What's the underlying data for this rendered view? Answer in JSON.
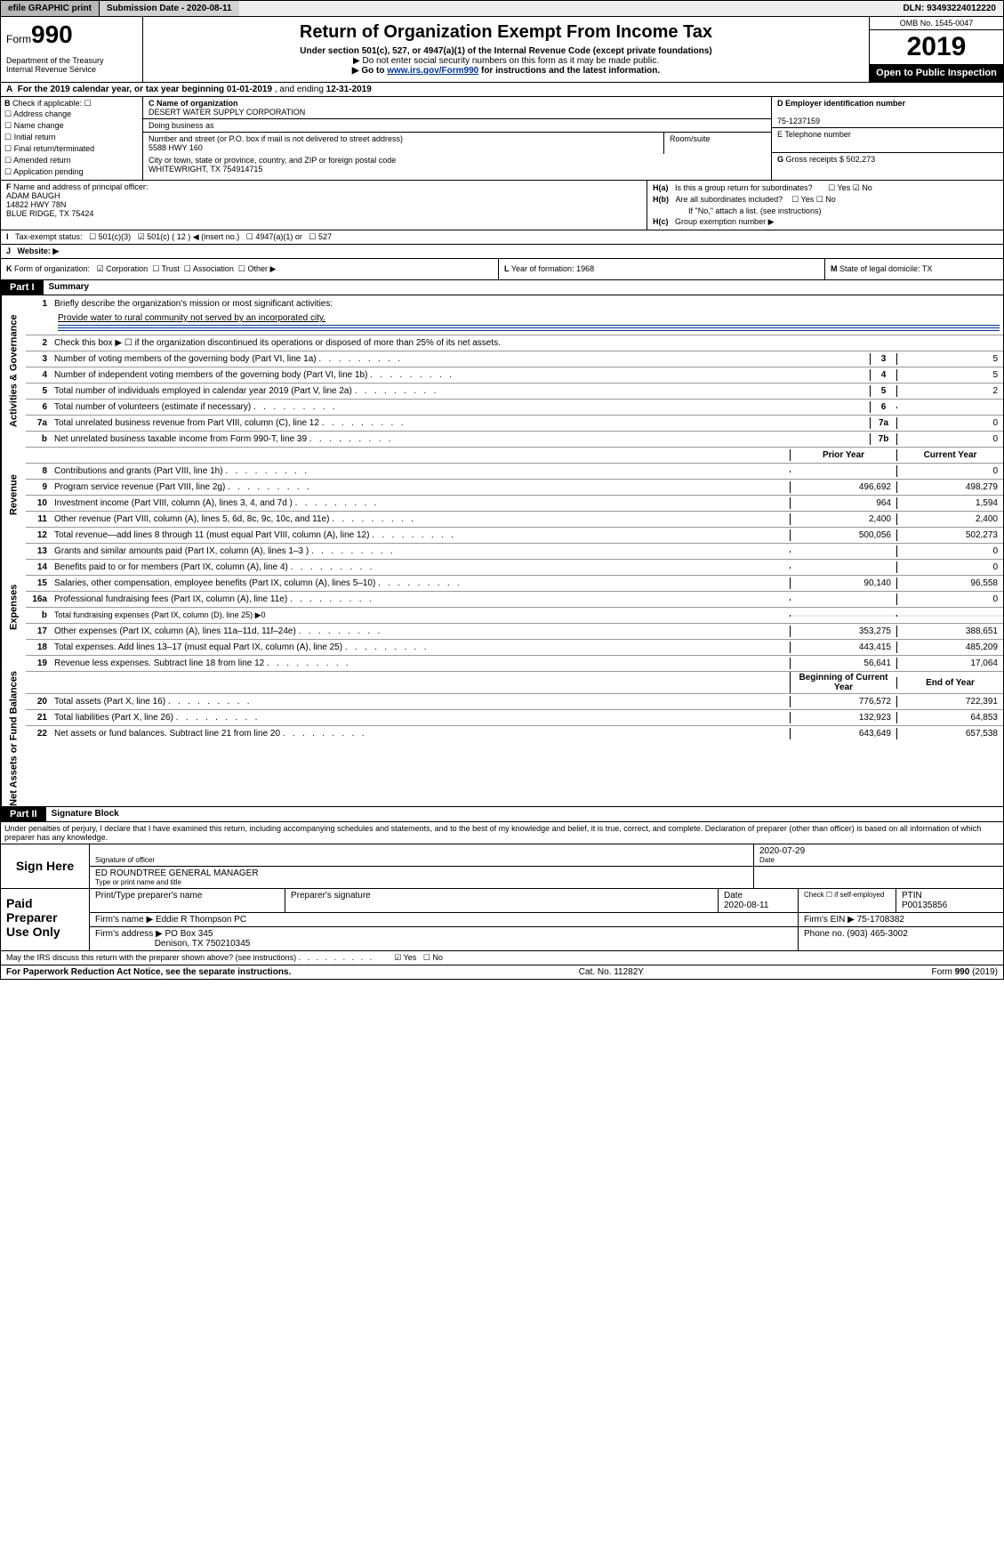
{
  "topbar": {
    "efile": "efile GRAPHIC print",
    "subm_label": "Submission Date - ",
    "subm_date": "2020-08-11",
    "dln_label": "DLN: ",
    "dln": "93493224012220"
  },
  "header": {
    "form_prefix": "Form",
    "form_num": "990",
    "dept": "Department of the Treasury\nInternal Revenue Service",
    "title": "Return of Organization Exempt From Income Tax",
    "sub1": "Under section 501(c), 527, or 4947(a)(1) of the Internal Revenue Code (except private foundations)",
    "sub2": "▶ Do not enter social security numbers on this form as it may be made public.",
    "sub3_pre": "▶ Go to ",
    "sub3_link": "www.irs.gov/Form990",
    "sub3_post": " for instructions and the latest information.",
    "omb": "OMB No. 1545-0047",
    "year": "2019",
    "open": "Open to Public Inspection"
  },
  "row_a": {
    "label_a": "A",
    "text": "For the 2019 calendar year, or tax year beginning ",
    "begin": "01-01-2019",
    "mid": " , and ending ",
    "end": "12-31-2019"
  },
  "section_b": {
    "label": "B",
    "check_label": "Check if applicable:",
    "checks": [
      "Address change",
      "Name change",
      "Initial return",
      "Final return/terminated",
      "Amended return",
      "Application pending"
    ],
    "c_name_label": "C Name of organization",
    "c_name": "DESERT WATER SUPPLY CORPORATION",
    "dba_label": "Doing business as",
    "addr_label": "Number and street (or P.O. box if mail is not delivered to street address)",
    "room_label": "Room/suite",
    "addr": "5588 HWY 160",
    "city_label": "City or town, state or province, country, and ZIP or foreign postal code",
    "city": "WHITEWRIGHT, TX  754914715",
    "d_label": "D Employer identification number",
    "d_val": "75-1237159",
    "e_label": "E Telephone number",
    "g_label": "G",
    "g_text": "Gross receipts $ ",
    "g_val": "502,273"
  },
  "section_fh": {
    "f_label": "F",
    "f_text": "Name and address of principal officer:",
    "f_name": "ADAM BAUGH",
    "f_addr1": "14822 HWY 78N",
    "f_addr2": "BLUE RIDGE, TX  75424",
    "ha_label": "H(a)",
    "ha_text": "Is this a group return for subordinates?",
    "hb_label": "H(b)",
    "hb_text": "Are all subordinates included?",
    "hb_note": "If \"No,\" attach a list. (see instructions)",
    "hc_label": "H(c)",
    "hc_text": "Group exemption number ▶",
    "yes": "Yes",
    "no": "No"
  },
  "row_i": {
    "label": "I",
    "text": "Tax-exempt status:",
    "opts": [
      "501(c)(3)",
      "501(c) ( 12 ) ◀ (insert no.)",
      "4947(a)(1) or",
      "527"
    ],
    "checked_index": 1
  },
  "row_j": {
    "label": "J",
    "text": "Website: ▶"
  },
  "row_k": {
    "label": "K",
    "text": "Form of organization:",
    "opts": [
      "Corporation",
      "Trust",
      "Association",
      "Other ▶"
    ],
    "checked_index": 0,
    "l_label": "L",
    "l_text": "Year of formation: ",
    "l_val": "1968",
    "m_label": "M",
    "m_text": "State of legal domicile: ",
    "m_val": "TX"
  },
  "part1": {
    "hdr": "Part I",
    "title": "Summary",
    "line1_label": "1",
    "line1": "Briefly describe the organization's mission or most significant activities:",
    "mission": "Provide water to rural community not served by an incorporated city.",
    "line2_label": "2",
    "line2": "Check this box ▶ ☐  if the organization discontinued its operations or disposed of more than 25% of its net assets.",
    "prior_hdr": "Prior Year",
    "curr_hdr": "Current Year",
    "boy_hdr": "Beginning of Current Year",
    "eoy_hdr": "End of Year",
    "sections": [
      {
        "side": "Activities & Governance",
        "rows": [
          {
            "n": "3",
            "d": "Number of voting members of the governing body (Part VI, line 1a)",
            "box": "3",
            "v2": "5"
          },
          {
            "n": "4",
            "d": "Number of independent voting members of the governing body (Part VI, line 1b)",
            "box": "4",
            "v2": "5"
          },
          {
            "n": "5",
            "d": "Total number of individuals employed in calendar year 2019 (Part V, line 2a)",
            "box": "5",
            "v2": "2"
          },
          {
            "n": "6",
            "d": "Total number of volunteers (estimate if necessary)",
            "box": "6",
            "v2": ""
          },
          {
            "n": "7a",
            "d": "Total unrelated business revenue from Part VIII, column (C), line 12",
            "box": "7a",
            "v2": "0"
          },
          {
            "n": "b",
            "d": "Net unrelated business taxable income from Form 990-T, line 39",
            "box": "7b",
            "v2": "0"
          }
        ]
      },
      {
        "side": "Revenue",
        "head": true,
        "rows": [
          {
            "n": "8",
            "d": "Contributions and grants (Part VIII, line 1h)",
            "v1": "",
            "v2": "0"
          },
          {
            "n": "9",
            "d": "Program service revenue (Part VIII, line 2g)",
            "v1": "496,692",
            "v2": "498,279"
          },
          {
            "n": "10",
            "d": "Investment income (Part VIII, column (A), lines 3, 4, and 7d )",
            "v1": "964",
            "v2": "1,594"
          },
          {
            "n": "11",
            "d": "Other revenue (Part VIII, column (A), lines 5, 6d, 8c, 9c, 10c, and 11e)",
            "v1": "2,400",
            "v2": "2,400"
          },
          {
            "n": "12",
            "d": "Total revenue—add lines 8 through 11 (must equal Part VIII, column (A), line 12)",
            "v1": "500,056",
            "v2": "502,273"
          }
        ]
      },
      {
        "side": "Expenses",
        "rows": [
          {
            "n": "13",
            "d": "Grants and similar amounts paid (Part IX, column (A), lines 1–3 )",
            "v1": "",
            "v2": "0"
          },
          {
            "n": "14",
            "d": "Benefits paid to or for members (Part IX, column (A), line 4)",
            "v1": "",
            "v2": "0"
          },
          {
            "n": "15",
            "d": "Salaries, other compensation, employee benefits (Part IX, column (A), lines 5–10)",
            "v1": "90,140",
            "v2": "96,558"
          },
          {
            "n": "16a",
            "d": "Professional fundraising fees (Part IX, column (A), line 11e)",
            "v1": "",
            "v2": "0"
          },
          {
            "n": "b",
            "d": "Total fundraising expenses (Part IX, column (D), line 25) ▶0",
            "span": true
          },
          {
            "n": "17",
            "d": "Other expenses (Part IX, column (A), lines 11a–11d, 11f–24e)",
            "v1": "353,275",
            "v2": "388,651"
          },
          {
            "n": "18",
            "d": "Total expenses. Add lines 13–17 (must equal Part IX, column (A), line 25)",
            "v1": "443,415",
            "v2": "485,209"
          },
          {
            "n": "19",
            "d": "Revenue less expenses. Subtract line 18 from line 12",
            "v1": "56,641",
            "v2": "17,064"
          }
        ]
      },
      {
        "side": "Net Assets or Fund Balances",
        "head2": true,
        "rows": [
          {
            "n": "20",
            "d": "Total assets (Part X, line 16)",
            "v1": "776,572",
            "v2": "722,391"
          },
          {
            "n": "21",
            "d": "Total liabilities (Part X, line 26)",
            "v1": "132,923",
            "v2": "64,853"
          },
          {
            "n": "22",
            "d": "Net assets or fund balances. Subtract line 21 from line 20",
            "v1": "643,649",
            "v2": "657,538"
          }
        ]
      }
    ]
  },
  "part2": {
    "hdr": "Part II",
    "title": "Signature Block",
    "perjury": "Under penalties of perjury, I declare that I have examined this return, including accompanying schedules and statements, and to the best of my knowledge and belief, it is true, correct, and complete. Declaration of preparer (other than officer) is based on all information of which preparer has any knowledge."
  },
  "sign": {
    "label": "Sign Here",
    "sig_label": "Signature of officer",
    "date": "2020-07-29",
    "date_label": "Date",
    "name": "ED ROUNDTREE  GENERAL MANAGER",
    "name_label": "Type or print name and title"
  },
  "prep": {
    "label": "Paid Preparer Use Only",
    "h1": "Print/Type preparer's name",
    "h2": "Preparer's signature",
    "h3": "Date",
    "h3v": "2020-08-11",
    "h4": "Check ☐ if self-employed",
    "h5": "PTIN",
    "h5v": "P00135856",
    "firm_name_l": "Firm's name    ▶ ",
    "firm_name": "Eddie R Thompson PC",
    "firm_ein_l": "Firm's EIN ▶ ",
    "firm_ein": "75-1708382",
    "firm_addr_l": "Firm's address ▶ ",
    "firm_addr1": "PO Box 345",
    "firm_addr2": "Denison, TX  750210345",
    "phone_l": "Phone no. ",
    "phone": "(903) 465-3002"
  },
  "footer": {
    "discuss": "May the IRS discuss this return with the preparer shown above? (see instructions)",
    "yes": "Yes",
    "no": "No",
    "pra": "For Paperwork Reduction Act Notice, see the separate instructions.",
    "cat": "Cat. No. 11282Y",
    "form": "Form 990 (2019)"
  }
}
